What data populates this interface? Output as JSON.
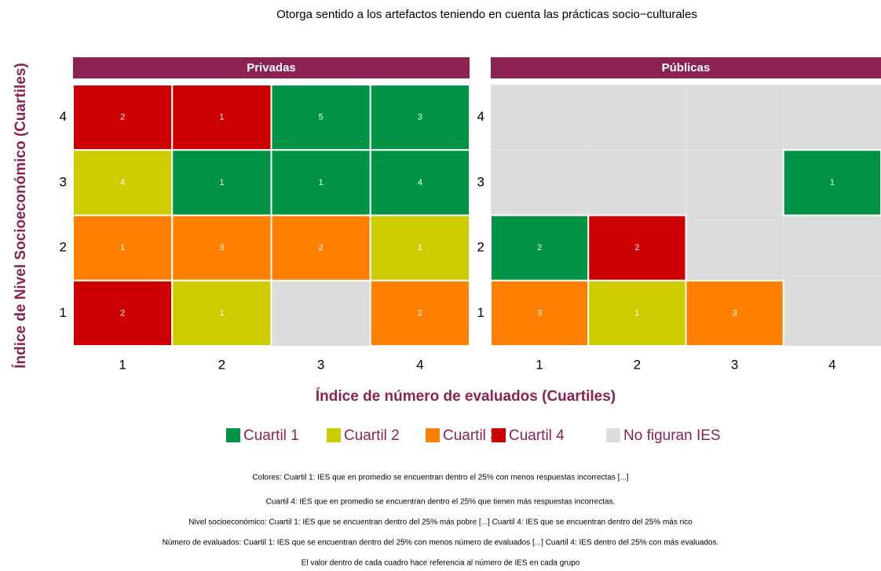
{
  "chart_data": {
    "type": "heatmap",
    "title": "Otorga sentido a los artefactos teniendo en cuenta las prácticas socio−culturales",
    "xlabel": "Índice de número de evaluados (Cuartiles)",
    "ylabel": "Índice de Nivel Socioeconómico (Cuartiles)",
    "xticks": [
      1,
      2,
      3,
      4
    ],
    "yticks": [
      1,
      2,
      3,
      4
    ],
    "xlim": [
      0.5,
      4.5
    ],
    "ylim": [
      0.5,
      4.5
    ],
    "legend": [
      {
        "name": "Cuartil 1",
        "color": "#009245"
      },
      {
        "name": "Cuartil 2",
        "color": "#cccc00"
      },
      {
        "name": "Cuartil 3",
        "color": "#ff8000"
      },
      {
        "name": "Cuartil 4",
        "color": "#cc0000"
      },
      {
        "name": "No figuran IES",
        "color": "#dcdcdc"
      }
    ],
    "panels": [
      {
        "title": "Privadas",
        "cells": [
          {
            "x": 1,
            "y": 4,
            "value": 2,
            "group": "Cuartil 4"
          },
          {
            "x": 2,
            "y": 4,
            "value": 1,
            "group": "Cuartil 4"
          },
          {
            "x": 3,
            "y": 4,
            "value": 5,
            "group": "Cuartil 1"
          },
          {
            "x": 4,
            "y": 4,
            "value": 3,
            "group": "Cuartil 1"
          },
          {
            "x": 1,
            "y": 3,
            "value": 4,
            "group": "Cuartil 2"
          },
          {
            "x": 2,
            "y": 3,
            "value": 1,
            "group": "Cuartil 1"
          },
          {
            "x": 3,
            "y": 3,
            "value": 1,
            "group": "Cuartil 1"
          },
          {
            "x": 4,
            "y": 3,
            "value": 4,
            "group": "Cuartil 1"
          },
          {
            "x": 1,
            "y": 2,
            "value": 1,
            "group": "Cuartil 3"
          },
          {
            "x": 2,
            "y": 2,
            "value": 3,
            "group": "Cuartil 3"
          },
          {
            "x": 3,
            "y": 2,
            "value": 2,
            "group": "Cuartil 3"
          },
          {
            "x": 4,
            "y": 2,
            "value": 1,
            "group": "Cuartil 2"
          },
          {
            "x": 1,
            "y": 1,
            "value": 2,
            "group": "Cuartil 4"
          },
          {
            "x": 2,
            "y": 1,
            "value": 1,
            "group": "Cuartil 2"
          },
          {
            "x": 4,
            "y": 1,
            "value": 2,
            "group": "Cuartil 3"
          }
        ]
      },
      {
        "title": "Públicas",
        "cells": [
          {
            "x": 4,
            "y": 3,
            "value": 1,
            "group": "Cuartil 1"
          },
          {
            "x": 1,
            "y": 2,
            "value": 2,
            "group": "Cuartil 1"
          },
          {
            "x": 2,
            "y": 2,
            "value": 2,
            "group": "Cuartil 4"
          },
          {
            "x": 1,
            "y": 1,
            "value": 3,
            "group": "Cuartil 3"
          },
          {
            "x": 2,
            "y": 1,
            "value": 1,
            "group": "Cuartil 2"
          },
          {
            "x": 3,
            "y": 1,
            "value": 3,
            "group": "Cuartil 3"
          }
        ]
      }
    ],
    "notes": [
      "Colores: Cuartil 1:  IES que en promedio se encuentran dentro el 25% con menos respuestas incorrectas [...]",
      "Cuartil 4: IES que en promedio se encuentran dentro el 25% que tienen más respuestas incorrectas.",
      "Nivel socioeconómico: Cuartil 1: IES que se encuentran dentro del 25% más pobre [...] Cuartil 4: IES que se encuentran dentro del 25% más rico",
      "Número de evaluados: Cuartil 1: IES que se encuentran dentro del 25% con menos número de evaluados [...] Cuartil 4: IES dentro del 25% con más evaluados.",
      "El valor dentro de cada cuadro hace referencia al número de IES en cada grupo"
    ]
  }
}
